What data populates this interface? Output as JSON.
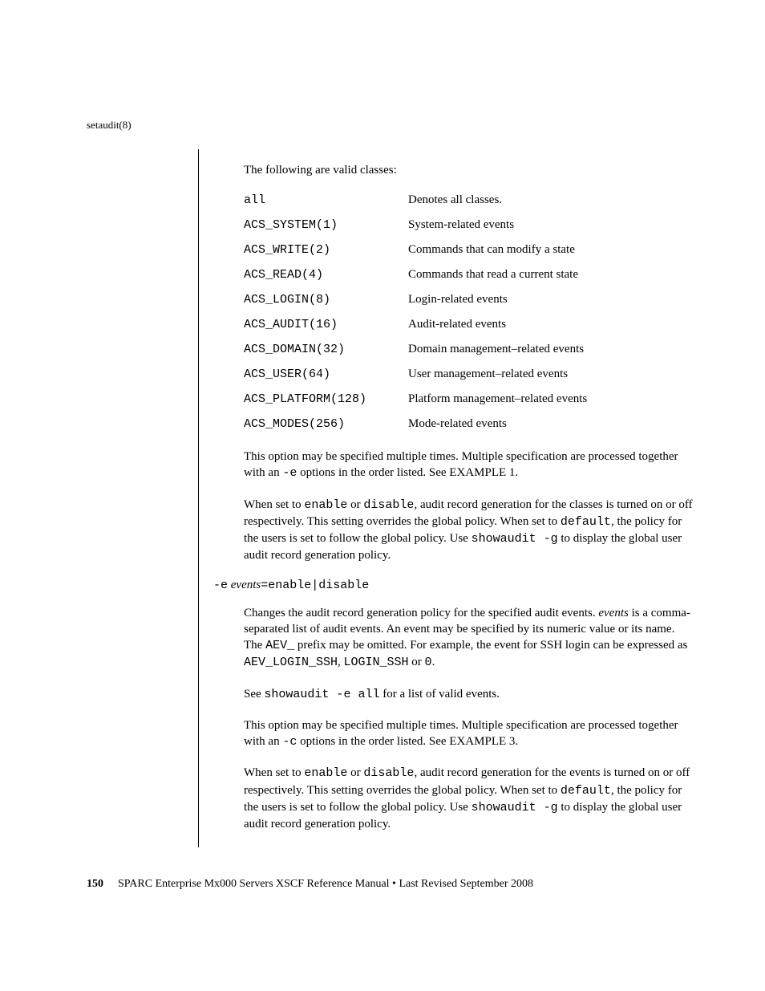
{
  "header": {
    "command_ref": "setaudit(8)"
  },
  "body": {
    "intro": "The following are valid classes:",
    "classes": [
      {
        "code": "all",
        "desc": "Denotes all classes."
      },
      {
        "code": "ACS_SYSTEM(1)",
        "desc": "System-related events"
      },
      {
        "code": "ACS_WRITE(2)",
        "desc": "Commands that can modify a state"
      },
      {
        "code": "ACS_READ(4)",
        "desc": "Commands that read a current state"
      },
      {
        "code": "ACS_LOGIN(8)",
        "desc": "Login-related events"
      },
      {
        "code": "ACS_AUDIT(16)",
        "desc": "Audit-related events"
      },
      {
        "code": "ACS_DOMAIN(32)",
        "desc": "Domain management–related events"
      },
      {
        "code": "ACS_USER(64)",
        "desc": "User management–related events"
      },
      {
        "code": "ACS_PLATFORM(128)",
        "desc": "Platform management–related events"
      },
      {
        "code": "ACS_MODES(256)",
        "desc": "Mode-related events"
      }
    ],
    "para1_a": "This option may be specified multiple times. Multiple specification are processed together with an ",
    "para1_b": "-e",
    "para1_c": " options in the order listed. See EXAMPLE 1.",
    "para2_a": "When set to ",
    "para2_b": "enable",
    "para2_c": " or ",
    "para2_d": "disable",
    "para2_e": ", audit record generation for the classes is turned on or off respectively. This setting overrides the global policy. When set to ",
    "para2_f": "default",
    "para2_g": ", the policy for the users is set to follow the global policy. Use ",
    "para2_h": "showaudit -g",
    "para2_i": " to display the global user audit record generation policy.",
    "option_e": {
      "flag": "-e",
      "arg_italic": "events",
      "arg_rest": "=enable|disable"
    },
    "para3_a": "Changes the audit record generation policy for the specified audit events. ",
    "para3_b": "events",
    "para3_c": " is a comma-separated list of audit events. An event may be specified by its numeric value or its name. The ",
    "para3_d": "AEV_",
    "para3_e": " prefix may be omitted. For example, the event for SSH login can be expressed as ",
    "para3_f": "AEV_LOGIN_SSH",
    "para3_g": ", ",
    "para3_h": "LOGIN_SSH",
    "para3_i": " or ",
    "para3_j": "0",
    "para3_k": ".",
    "para4_a": "See ",
    "para4_b": "showaudit -e all",
    "para4_c": " for a list of valid events.",
    "para5_a": "This option may be specified multiple times. Multiple specification are processed together with an ",
    "para5_b": "-c",
    "para5_c": " options in the order listed. See EXAMPLE 3.",
    "para6_a": "When set to ",
    "para6_b": "enable",
    "para6_c": " or ",
    "para6_d": "disable",
    "para6_e": ", audit record generation for the events is turned on or off respectively. This setting overrides the global policy. When set to ",
    "para6_f": "default",
    "para6_g": ", the policy for the users is set to follow the global policy. Use ",
    "para6_h": "showaudit -g",
    "para6_i": " to display the global user audit record generation policy."
  },
  "footer": {
    "page_number": "150",
    "text": "SPARC Enterprise Mx000 Servers XSCF Reference Manual • Last Revised September 2008"
  }
}
